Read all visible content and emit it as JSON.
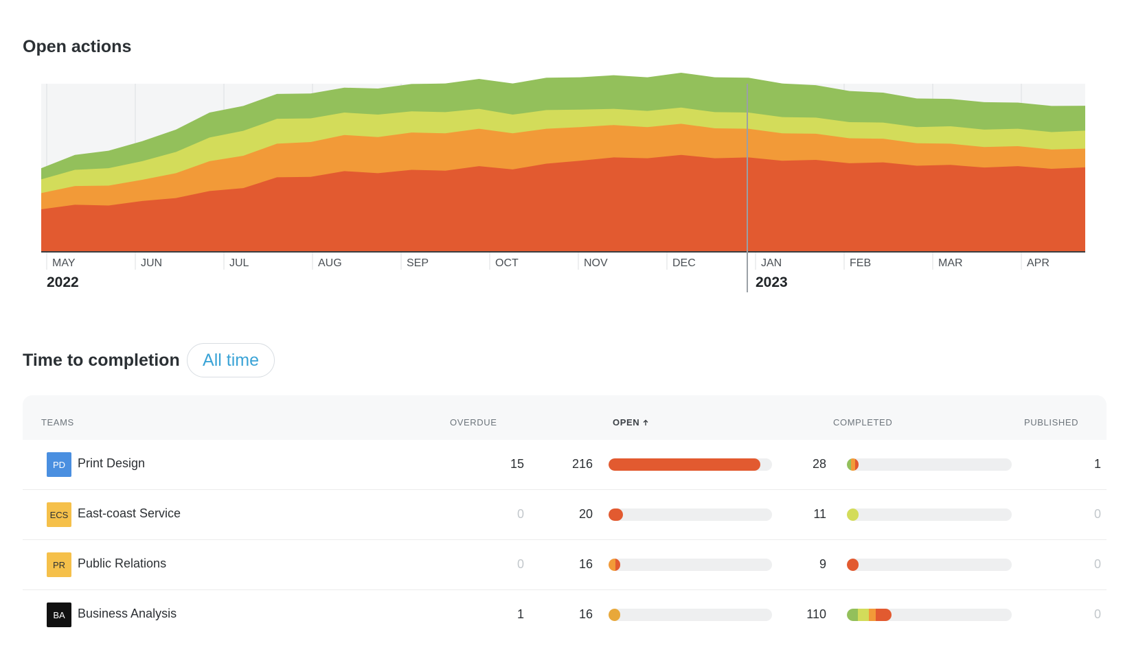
{
  "open_actions": {
    "title": "Open actions",
    "chart_data": {
      "type": "area",
      "stacked": true,
      "x_axis": {
        "months": [
          "MAY",
          "JUN",
          "JUL",
          "AUG",
          "SEP",
          "OCT",
          "NOV",
          "DEC",
          "JAN",
          "FEB",
          "MAR",
          "APR"
        ],
        "years": [
          {
            "label": "2022",
            "at_month": "MAY"
          },
          {
            "label": "2023",
            "at_month": "JAN"
          }
        ]
      },
      "grid": true,
      "colors": [
        "#e25a30",
        "#f29a38",
        "#d3dc5a",
        "#93c05b"
      ],
      "series": [
        {
          "values": [
            70,
            74,
            76,
            80,
            88,
            96,
            104,
            118,
            122,
            128,
            128,
            130,
            132,
            136,
            134,
            140,
            148,
            150,
            152,
            154,
            152,
            150,
            148,
            146,
            144,
            142,
            140,
            138,
            137,
            136,
            135,
            134
          ]
        },
        {
          "values": [
            26,
            30,
            32,
            34,
            40,
            48,
            52,
            54,
            56,
            58,
            58,
            60,
            60,
            60,
            58,
            56,
            54,
            52,
            50,
            50,
            48,
            46,
            44,
            42,
            40,
            38,
            36,
            34,
            33,
            32,
            31,
            30
          ]
        },
        {
          "values": [
            22,
            26,
            28,
            30,
            34,
            38,
            40,
            40,
            38,
            36,
            36,
            34,
            34,
            32,
            30,
            30,
            28,
            26,
            26,
            26,
            26,
            26,
            26,
            26,
            26,
            26,
            26,
            28,
            28,
            28,
            28,
            29
          ]
        },
        {
          "values": [
            18,
            24,
            28,
            32,
            36,
            40,
            40,
            40,
            40,
            40,
            42,
            44,
            46,
            48,
            50,
            52,
            52,
            54,
            54,
            56,
            56,
            56,
            54,
            52,
            50,
            48,
            46,
            44,
            44,
            42,
            42,
            40
          ]
        }
      ]
    }
  },
  "completion": {
    "title": "Time to completion",
    "filter_label": "All time",
    "headers": {
      "teams": "TEAMS",
      "overdue": "OVERDUE",
      "open": "OPEN",
      "completed": "COMPLETED",
      "published": "PUBLISHED"
    },
    "sort_icon": "arrow-up-icon",
    "rows": [
      {
        "initials": "PD",
        "name": "Print Design",
        "badge_bg": "#4a8fe0",
        "badge_fg": "#ffffff",
        "overdue": "15",
        "open": "216",
        "completed": "28",
        "published": "1",
        "open_fraction": 0.93,
        "open_segments": [
          {
            "color": "#e25a30",
            "share": 1.0
          }
        ],
        "completed_fraction": 0.07,
        "completed_segments": [
          {
            "color": "#93c05b",
            "share": 0.35
          },
          {
            "color": "#f29a38",
            "share": 0.35
          },
          {
            "color": "#e25a30",
            "share": 0.3
          }
        ]
      },
      {
        "initials": "ECS",
        "name": "East-coast Service",
        "badge_bg": "#f5c04a",
        "badge_fg": "#2b2f33",
        "overdue": "0",
        "open": "20",
        "completed": "11",
        "published": "0",
        "open_fraction": 0.09,
        "open_segments": [
          {
            "color": "#e25a30",
            "share": 1.0
          }
        ],
        "completed_fraction": 0.03,
        "completed_segments": [
          {
            "color": "#d3dc5a",
            "share": 1.0
          }
        ]
      },
      {
        "initials": "PR",
        "name": "Public Relations",
        "badge_bg": "#f5c04a",
        "badge_fg": "#2b2f33",
        "overdue": "0",
        "open": "16",
        "completed": "9",
        "published": "0",
        "open_fraction": 0.07,
        "open_segments": [
          {
            "color": "#f29a38",
            "share": 0.6
          },
          {
            "color": "#e25a30",
            "share": 0.4
          }
        ],
        "completed_fraction": 0.02,
        "completed_segments": [
          {
            "color": "#e25a30",
            "share": 1.0
          }
        ]
      },
      {
        "initials": "BA",
        "name": "Business Analysis",
        "badge_bg": "#111111",
        "badge_fg": "#ffffff",
        "overdue": "1",
        "open": "16",
        "completed": "110",
        "published": "0",
        "open_fraction": 0.07,
        "open_segments": [
          {
            "color": "#e8a83a",
            "share": 1.0
          }
        ],
        "completed_fraction": 0.27,
        "completed_segments": [
          {
            "color": "#93c05b",
            "share": 0.25
          },
          {
            "color": "#d3dc5a",
            "share": 0.25
          },
          {
            "color": "#f29a38",
            "share": 0.15
          },
          {
            "color": "#e25a30",
            "share": 0.35
          }
        ]
      }
    ]
  }
}
